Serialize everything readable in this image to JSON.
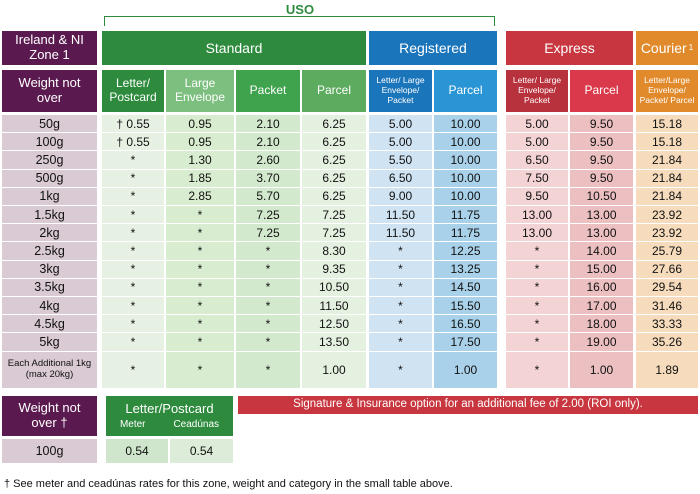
{
  "uso_label": "USO",
  "zone_title": "Ireland & NI Zone 1",
  "weight_header": "Weight not over",
  "groups": {
    "standard": "Standard",
    "registered": "Registered",
    "express": "Express",
    "courier": "Courier",
    "courier_sup": "1"
  },
  "subheaders": {
    "std_letter": "Letter/ Postcard",
    "std_large": "Large Envelope",
    "std_packet": "Packet",
    "std_parcel": "Parcel",
    "reg_letter": "Letter/ Large Envelope/ Packet",
    "reg_parcel": "Parcel",
    "exp_letter": "Letter/ Large Envelope/ Packet",
    "exp_parcel": "Parcel",
    "courier_all": "Letter/Large Envelope/ Packet/ Parcel"
  },
  "rows": [
    {
      "weight": "50g",
      "std_letter": "† 0.55",
      "std_large": "0.95",
      "std_packet": "2.10",
      "std_parcel": "6.25",
      "reg_letter": "5.00",
      "reg_parcel": "10.00",
      "exp_letter": "5.00",
      "exp_parcel": "9.50",
      "courier": "15.18"
    },
    {
      "weight": "100g",
      "std_letter": "† 0.55",
      "std_large": "0.95",
      "std_packet": "2.10",
      "std_parcel": "6.25",
      "reg_letter": "5.00",
      "reg_parcel": "10.00",
      "exp_letter": "5.00",
      "exp_parcel": "9.50",
      "courier": "15.18"
    },
    {
      "weight": "250g",
      "std_letter": "*",
      "std_large": "1.30",
      "std_packet": "2.60",
      "std_parcel": "6.25",
      "reg_letter": "5.50",
      "reg_parcel": "10.00",
      "exp_letter": "6.50",
      "exp_parcel": "9.50",
      "courier": "21.84"
    },
    {
      "weight": "500g",
      "std_letter": "*",
      "std_large": "1.85",
      "std_packet": "3.70",
      "std_parcel": "6.25",
      "reg_letter": "6.50",
      "reg_parcel": "10.00",
      "exp_letter": "7.50",
      "exp_parcel": "9.50",
      "courier": "21.84"
    },
    {
      "weight": "1kg",
      "std_letter": "*",
      "std_large": "2.85",
      "std_packet": "5.70",
      "std_parcel": "6.25",
      "reg_letter": "9.00",
      "reg_parcel": "10.00",
      "exp_letter": "9.50",
      "exp_parcel": "10.50",
      "courier": "21.84"
    },
    {
      "weight": "1.5kg",
      "std_letter": "*",
      "std_large": "*",
      "std_packet": "7.25",
      "std_parcel": "7.25",
      "reg_letter": "11.50",
      "reg_parcel": "11.75",
      "exp_letter": "13.00",
      "exp_parcel": "13.00",
      "courier": "23.92"
    },
    {
      "weight": "2kg",
      "std_letter": "*",
      "std_large": "*",
      "std_packet": "7.25",
      "std_parcel": "7.25",
      "reg_letter": "11.50",
      "reg_parcel": "11.75",
      "exp_letter": "13.00",
      "exp_parcel": "13.00",
      "courier": "23.92"
    },
    {
      "weight": "2.5kg",
      "std_letter": "*",
      "std_large": "*",
      "std_packet": "*",
      "std_parcel": "8.30",
      "reg_letter": "*",
      "reg_parcel": "12.25",
      "exp_letter": "*",
      "exp_parcel": "14.00",
      "courier": "25.79"
    },
    {
      "weight": "3kg",
      "std_letter": "*",
      "std_large": "*",
      "std_packet": "*",
      "std_parcel": "9.35",
      "reg_letter": "*",
      "reg_parcel": "13.25",
      "exp_letter": "*",
      "exp_parcel": "15.00",
      "courier": "27.66"
    },
    {
      "weight": "3.5kg",
      "std_letter": "*",
      "std_large": "*",
      "std_packet": "*",
      "std_parcel": "10.50",
      "reg_letter": "*",
      "reg_parcel": "14.50",
      "exp_letter": "*",
      "exp_parcel": "16.00",
      "courier": "29.54"
    },
    {
      "weight": "4kg",
      "std_letter": "*",
      "std_large": "*",
      "std_packet": "*",
      "std_parcel": "11.50",
      "reg_letter": "*",
      "reg_parcel": "15.50",
      "exp_letter": "*",
      "exp_parcel": "17.00",
      "courier": "31.46"
    },
    {
      "weight": "4.5kg",
      "std_letter": "*",
      "std_large": "*",
      "std_packet": "*",
      "std_parcel": "12.50",
      "reg_letter": "*",
      "reg_parcel": "16.50",
      "exp_letter": "*",
      "exp_parcel": "18.00",
      "courier": "33.33"
    },
    {
      "weight": "5kg",
      "std_letter": "*",
      "std_large": "*",
      "std_packet": "*",
      "std_parcel": "13.50",
      "reg_letter": "*",
      "reg_parcel": "17.50",
      "exp_letter": "*",
      "exp_parcel": "19.00",
      "courier": "35.26"
    },
    {
      "weight": "Each Additional 1kg (max 20kg)",
      "std_letter": "*",
      "std_large": "*",
      "std_packet": "*",
      "std_parcel": "1.00",
      "reg_letter": "*",
      "reg_parcel": "1.00",
      "exp_letter": "*",
      "exp_parcel": "1.00",
      "courier": "1.89"
    }
  ],
  "small_table": {
    "weight_header": "Weight not over †",
    "title": "Letter/Postcard",
    "col_meter": "Meter",
    "col_ceadunas": "Ceadúnas",
    "weight": "100g",
    "meter": "0.54",
    "ceadunas": "0.54"
  },
  "signature_note": "Signature & Insurance option for an additional fee of 2.00 (ROI only).",
  "footnote": "† See meter and ceadúnas rates for this zone, weight and category in the small table above.",
  "colors": {
    "purple": "#5b1a4f",
    "green_dark": "#2e8b3e",
    "green_mid": "#3fa34d",
    "green_light": "#7cbf7f",
    "blue_dark": "#1b75bb",
    "blue_mid": "#2a95d5",
    "red_dark": "#c8373f",
    "red_mid": "#d9394a",
    "orange": "#e08a2c"
  }
}
